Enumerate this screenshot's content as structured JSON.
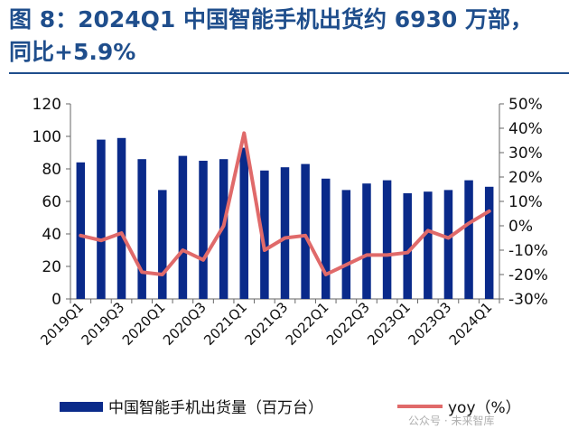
{
  "header": {
    "title_line1": "图 8：2024Q1 中国智能手机出货约 6930 万部，",
    "title_line2": "同比+5.9%"
  },
  "watermark": "公众号 · 未来智库",
  "colors": {
    "bar": "#0a2a8a",
    "line": "#e06a6a",
    "title": "#1f4e8c"
  },
  "chart_data": {
    "type": "bar+line",
    "categories": [
      "2019Q1",
      "2019Q2",
      "2019Q3",
      "2019Q4",
      "2020Q1",
      "2020Q2",
      "2020Q3",
      "2020Q4",
      "2021Q1",
      "2021Q2",
      "2021Q3",
      "2021Q4",
      "2022Q1",
      "2022Q2",
      "2022Q3",
      "2022Q4",
      "2023Q1",
      "2023Q2",
      "2023Q3",
      "2023Q4",
      "2024Q1"
    ],
    "xtick_labels": [
      "2019Q1",
      "",
      "2019Q3",
      "",
      "2020Q1",
      "",
      "2020Q3",
      "",
      "2021Q1",
      "",
      "2021Q3",
      "",
      "2022Q1",
      "",
      "2022Q3",
      "",
      "2023Q1",
      "",
      "2023Q3",
      "",
      "2024Q1"
    ],
    "series": [
      {
        "name": "中国智能手机出货量（百万台）",
        "type": "bar",
        "axis": "left",
        "values": [
          84,
          98,
          99,
          86,
          67,
          88,
          85,
          86,
          93,
          79,
          81,
          83,
          74,
          67,
          71,
          73,
          65,
          66,
          67,
          73,
          69
        ]
      },
      {
        "name": "yoy（%）",
        "type": "line",
        "axis": "right",
        "values": [
          -4,
          -6,
          -3,
          -19,
          -20,
          -10,
          -14,
          0,
          38,
          -10,
          -5,
          -4,
          -20,
          -16,
          -12,
          -12,
          -11,
          -2,
          -5,
          1,
          6
        ]
      }
    ],
    "y_left": {
      "min": 0,
      "max": 120,
      "step": 20,
      "ticks": [
        "0",
        "20",
        "40",
        "60",
        "80",
        "100",
        "120"
      ]
    },
    "y_right": {
      "min": -30,
      "max": 50,
      "step": 10,
      "ticks": [
        "-30%",
        "-20%",
        "-10%",
        "0%",
        "10%",
        "20%",
        "30%",
        "40%",
        "50%"
      ]
    },
    "legend": [
      {
        "label": "中国智能手机出货量（百万台）",
        "kind": "bar"
      },
      {
        "label": "yoy（%）",
        "kind": "line"
      }
    ],
    "legend_position": "bottom"
  }
}
